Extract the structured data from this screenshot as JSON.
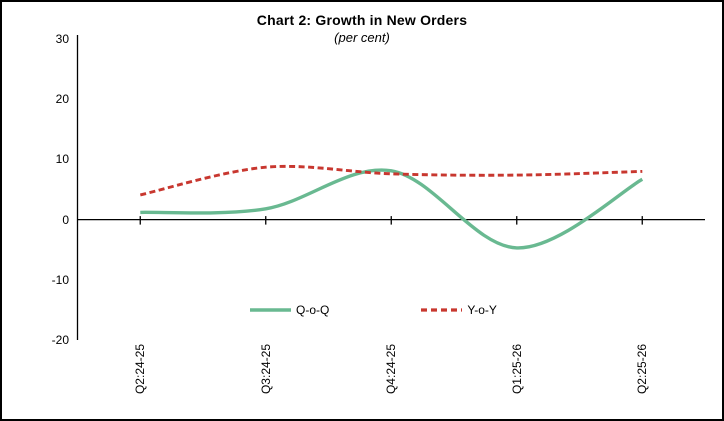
{
  "chart_data": {
    "type": "line",
    "title": "Chart 2: Growth in New Orders",
    "subtitle": "(per cent)",
    "categories": [
      "Q2:24-25",
      "Q3:24-25",
      "Q4:24-25",
      "Q1:25-26",
      "Q2:25-26"
    ],
    "series": [
      {
        "name": "Q-o-Q",
        "values": [
          1.2,
          1.8,
          8.1,
          -4.7,
          6.7
        ],
        "color": "#69b991",
        "style": "solid"
      },
      {
        "name": "Y-o-Y",
        "values": [
          4.1,
          8.7,
          7.6,
          7.4,
          8.0
        ],
        "color": "#c8372f",
        "style": "dashed"
      }
    ],
    "xlabel": "",
    "ylabel": "",
    "ylim": [
      -20,
      30
    ],
    "y_ticks": [
      30,
      20,
      10,
      0,
      -10,
      -20
    ],
    "grid": false,
    "smooth": true,
    "legend_position": "bottom",
    "axis_color": "#000000",
    "background_color": "#ffffff"
  }
}
